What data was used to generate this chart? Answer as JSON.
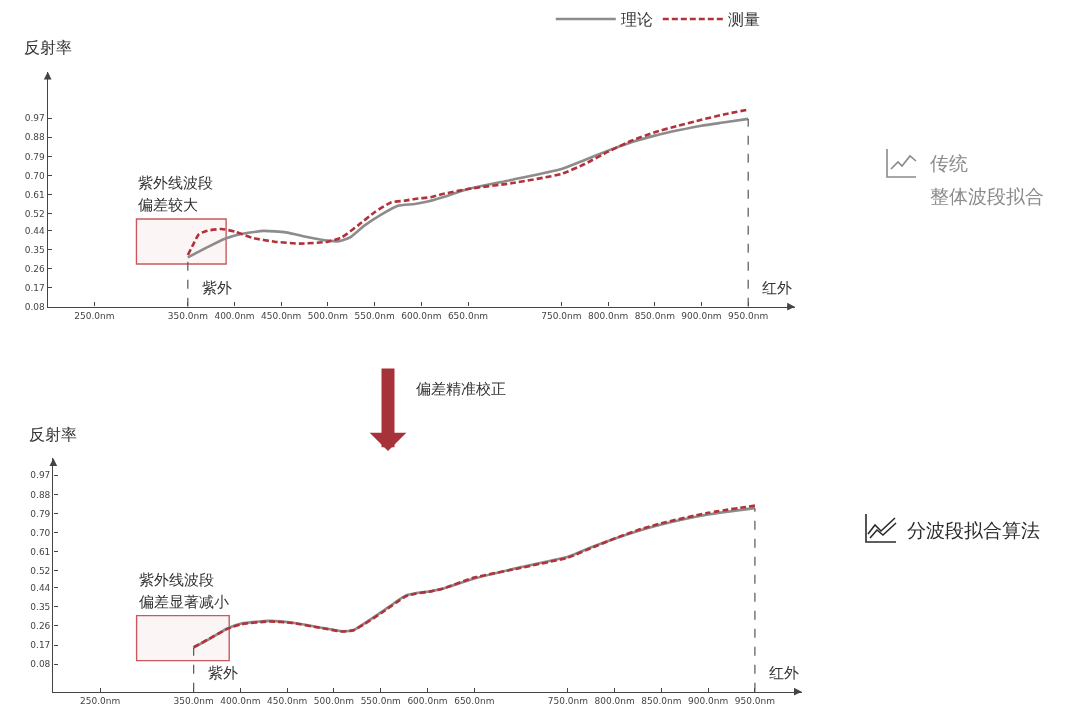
{
  "chart_data": [
    {
      "type": "line",
      "ylabel": "反射率",
      "annotations": [
        "紫外线波段",
        "偏差较大",
        "传统",
        "整体波段拟合"
      ],
      "xlim": [
        200,
        1000
      ],
      "xticks": [
        {
          "value": 250,
          "label": "250.0nm"
        },
        {
          "value": 350,
          "label": "350.0nm"
        },
        {
          "value": 400,
          "label": "400.0nm"
        },
        {
          "value": 450,
          "label": "450.0nm"
        },
        {
          "value": 500,
          "label": "500.0nm"
        },
        {
          "value": 550,
          "label": "550.0nm"
        },
        {
          "value": 600,
          "label": "600.0nm"
        },
        {
          "value": 650,
          "label": "650.0nm"
        },
        {
          "value": 750,
          "label": "750.0nm"
        },
        {
          "value": 800,
          "label": "800.0nm"
        },
        {
          "value": 850,
          "label": "850.0nm"
        },
        {
          "value": 900,
          "label": "900.0nm"
        },
        {
          "value": 950,
          "label": "950.0nm"
        }
      ],
      "ylim": [
        0.08,
        1.19
      ],
      "yticks": [
        0.08,
        0.17,
        0.26,
        0.35,
        0.44,
        0.52,
        0.61,
        {
          "value": 0.7,
          "label": "0.70"
        },
        0.79,
        0.88,
        0.97
      ],
      "legend": "top",
      "series": [
        {
          "name": "理论",
          "color": "#8c8c8c",
          "line_style": "solid",
          "x": [
            350,
            371,
            389,
            407,
            431,
            455,
            479,
            500,
            512,
            524,
            539,
            557,
            575,
            593,
            608,
            623,
            650,
            698,
            750,
            775,
            800,
            825,
            850,
            875,
            900,
            925,
            950
          ],
          "values": [
            0.313,
            0.361,
            0.4,
            0.423,
            0.438,
            0.431,
            0.408,
            0.392,
            0.389,
            0.408,
            0.463,
            0.515,
            0.557,
            0.565,
            0.578,
            0.597,
            0.636,
            0.68,
            0.73,
            0.773,
            0.817,
            0.857,
            0.888,
            0.913,
            0.935,
            0.951,
            0.967
          ]
        },
        {
          "name": "测量",
          "color": "#b3313a",
          "line_style": "dashed",
          "x": [
            350,
            356,
            362,
            371,
            386,
            401,
            419,
            443,
            470,
            500,
            515,
            532,
            550,
            568,
            583,
            593,
            610,
            623,
            650,
            698,
            750,
            775,
            800,
            825,
            850,
            875,
            900,
            925,
            950
          ],
          "values": [
            0.324,
            0.376,
            0.423,
            0.439,
            0.447,
            0.434,
            0.405,
            0.387,
            0.378,
            0.387,
            0.408,
            0.463,
            0.526,
            0.573,
            0.581,
            0.589,
            0.597,
            0.612,
            0.636,
            0.664,
            0.707,
            0.754,
            0.812,
            0.864,
            0.904,
            0.935,
            0.963,
            0.989,
            1.011
          ]
        }
      ],
      "ref_lines": [
        {
          "axis": "x",
          "value": 350,
          "label": "紫外",
          "color": "#555555",
          "line_style": "dashed"
        },
        {
          "axis": "x",
          "value": 950,
          "label": "红外",
          "color": "#555555",
          "line_style": "dashed"
        }
      ],
      "bands": [
        {
          "axis": "x",
          "from": 295,
          "to": 391,
          "color": "#c8595e"
        }
      ]
    },
    {
      "type": "line",
      "ylabel": "反射率",
      "annotations": [
        "偏差精准校正",
        "紫外线波段",
        "偏差显著减小",
        "分波段拟合算法"
      ],
      "xlim": [
        200,
        1000
      ],
      "xticks": [
        {
          "value": 250,
          "label": "250.0nm"
        },
        {
          "value": 350,
          "label": "350.0nm"
        },
        {
          "value": 400,
          "label": "400.0nm"
        },
        {
          "value": 450,
          "label": "450.0nm"
        },
        {
          "value": 500,
          "label": "500.0nm"
        },
        {
          "value": 550,
          "label": "550.0nm"
        },
        {
          "value": 600,
          "label": "600.0nm"
        },
        {
          "value": 650,
          "label": "650.0nm"
        },
        {
          "value": 750,
          "label": "750.0nm"
        },
        {
          "value": 800,
          "label": "800.0nm"
        },
        {
          "value": 850,
          "label": "850.0nm"
        },
        {
          "value": 900,
          "label": "900.0nm"
        },
        {
          "value": 950,
          "label": "950.0nm"
        }
      ],
      "ylim": [
        -0.05,
        1.05
      ],
      "yticks": [
        0.08,
        0.17,
        0.26,
        0.35,
        0.44,
        0.52,
        0.61,
        {
          "value": 0.7,
          "label": "0.70"
        },
        0.79,
        0.88,
        0.97
      ],
      "series": [
        {
          "color": "#8c8c8c",
          "line_style": "solid",
          "x": [
            350,
            365,
            386,
            401,
            431,
            455,
            485,
            509,
            521,
            533,
            551,
            566,
            577,
            587,
            605,
            617,
            650,
            698,
            750,
            775,
            800,
            825,
            850,
            900,
            950
          ],
          "values": [
            0.158,
            0.194,
            0.248,
            0.271,
            0.284,
            0.276,
            0.253,
            0.235,
            0.241,
            0.273,
            0.326,
            0.373,
            0.404,
            0.414,
            0.425,
            0.436,
            0.483,
            0.535,
            0.586,
            0.631,
            0.671,
            0.707,
            0.738,
            0.785,
            0.815
          ]
        },
        {
          "color": "#b3313a",
          "line_style": "dashed",
          "x": [
            350,
            365,
            386,
            401,
            431,
            455,
            485,
            509,
            521,
            533,
            551,
            566,
            577,
            587,
            605,
            617,
            650,
            698,
            750,
            775,
            800,
            825,
            850,
            900,
            950
          ],
          "values": [
            0.16,
            0.196,
            0.246,
            0.268,
            0.281,
            0.274,
            0.251,
            0.234,
            0.24,
            0.27,
            0.322,
            0.368,
            0.4,
            0.412,
            0.424,
            0.437,
            0.488,
            0.532,
            0.582,
            0.627,
            0.672,
            0.712,
            0.744,
            0.793,
            0.827
          ]
        }
      ],
      "ref_lines": [
        {
          "axis": "x",
          "value": 350,
          "label": "紫外",
          "color": "#555555",
          "line_style": "dashed"
        },
        {
          "axis": "x",
          "value": 950,
          "label": "红外",
          "color": "#555555",
          "line_style": "dashed"
        }
      ],
      "bands": [
        {
          "axis": "x",
          "from": 289,
          "to": 388,
          "color": "#c8595e"
        }
      ]
    }
  ]
}
